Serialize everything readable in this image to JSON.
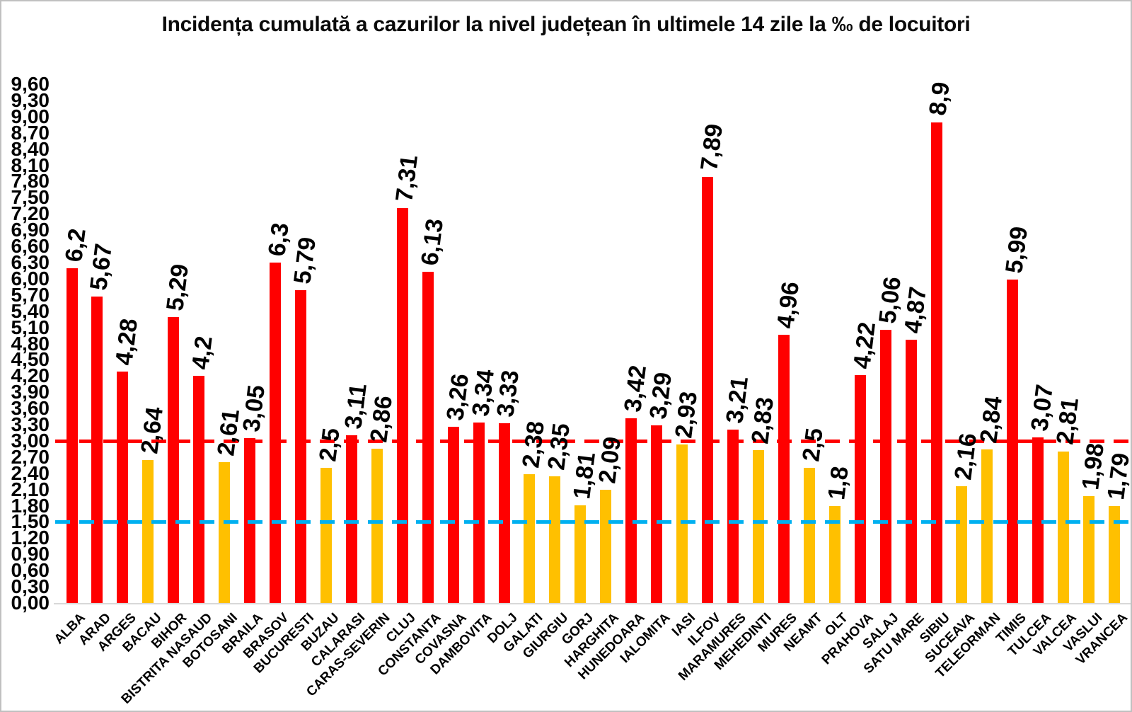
{
  "title": "Incidența cumulată a cazurilor la nivel județean în ultimele 14 zile la ‰ de locuitori",
  "colors": {
    "bar_high": "#ff0000",
    "bar_low": "#ffc000",
    "red_dashed_line": "#ff0000",
    "blue_dashed_line": "#00b0f0",
    "axis_line": "#d8d8d8"
  },
  "chart_data": {
    "type": "bar",
    "title": "Incidența cumulată a cazurilor la nivel județean în ultimele 14 zile la ‰ de locuitori",
    "categories": [
      "ALBA",
      "ARAD",
      "ARGES",
      "BACAU",
      "BIHOR",
      "BISTRITA NASAUD",
      "BOTOSANI",
      "BRAILA",
      "BRASOV",
      "BUCURESTI",
      "BUZAU",
      "CALARASI",
      "CARAS-SEVERIN",
      "CLUJ",
      "CONSTANTA",
      "COVASNA",
      "DAMBOVITA",
      "DOLJ",
      "GALATI",
      "GIURGIU",
      "GORJ",
      "HARGHITA",
      "HUNEDOARA",
      "IALOMITA",
      "IASI",
      "ILFOV",
      "MARAMURES",
      "MEHEDINTI",
      "MURES",
      "NEAMT",
      "OLT",
      "PRAHOVA",
      "SALAJ",
      "SATU MARE",
      "SIBIU",
      "SUCEAVA",
      "TELEORMAN",
      "TIMIS",
      "TULCEA",
      "VALCEA",
      "VASLUI",
      "VRANCEA"
    ],
    "values": [
      6.2,
      5.67,
      4.28,
      2.64,
      5.29,
      4.2,
      2.61,
      3.05,
      6.3,
      5.79,
      2.5,
      3.11,
      2.86,
      7.31,
      6.13,
      3.26,
      3.34,
      3.33,
      2.38,
      2.35,
      1.81,
      2.09,
      3.42,
      3.29,
      2.93,
      7.89,
      3.21,
      2.83,
      4.96,
      2.5,
      1.8,
      4.22,
      5.06,
      4.87,
      8.9,
      2.16,
      2.84,
      5.99,
      3.07,
      2.81,
      1.98,
      1.79
    ],
    "value_labels": [
      "6,2",
      "5,67",
      "4,28",
      "2,64",
      "5,29",
      "4,2",
      "2,61",
      "3,05",
      "6,3",
      "5,79",
      "2,5",
      "3,11",
      "2,86",
      "7,31",
      "6,13",
      "3,26",
      "3,34",
      "3,33",
      "2,38",
      "2,35",
      "1,81",
      "2,09",
      "3,42",
      "3,29",
      "2,93",
      "7,89",
      "3,21",
      "2,83",
      "4,96",
      "2,5",
      "1,8",
      "4,22",
      "5,06",
      "4,87",
      "8,9",
      "2,16",
      "2,84",
      "5,99",
      "3,07",
      "2,81",
      "1,98",
      "1,79"
    ],
    "xlabel": "",
    "ylabel": "",
    "ylim": [
      0,
      9.6
    ],
    "ytick_step": 0.3,
    "ytick_decimal_separator": ",",
    "grid": false,
    "legend_position": "none",
    "bar_color_rule": {
      "threshold": 3,
      "at_or_above": "#ff0000",
      "below": "#ffc000"
    },
    "threshold_lines": [
      {
        "value": 3,
        "color": "#ff0000",
        "style": "dashed"
      },
      {
        "value": 1.5,
        "color": "#00b0f0",
        "style": "dashed"
      }
    ]
  }
}
